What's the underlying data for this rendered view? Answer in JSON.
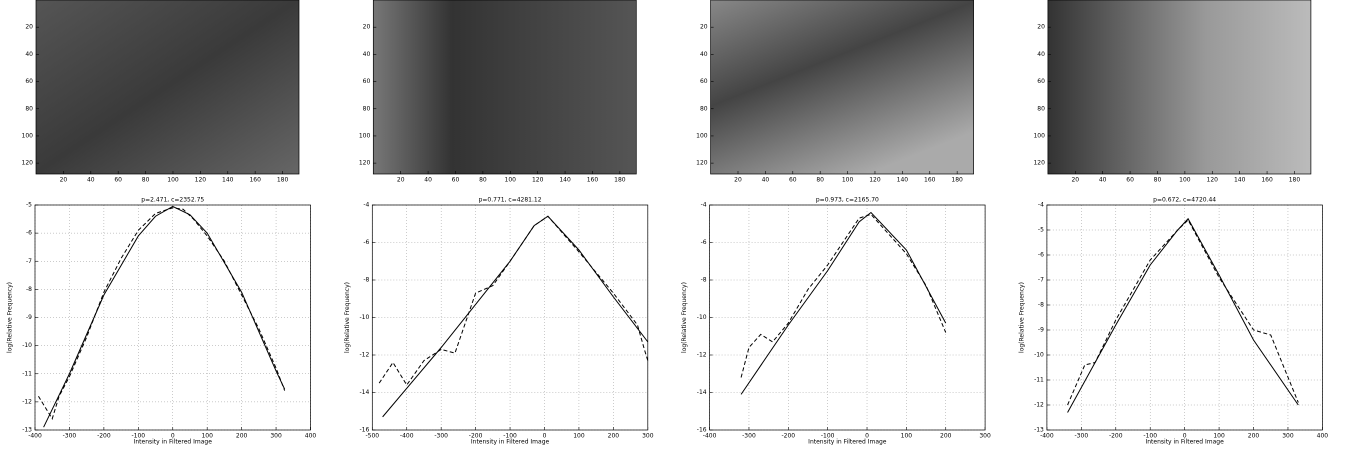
{
  "chart_data": [
    {
      "type": "image",
      "xlim": [
        0,
        192
      ],
      "ylim": [
        128,
        0
      ],
      "xticks": [
        20,
        40,
        60,
        80,
        100,
        120,
        140,
        160,
        180
      ],
      "yticks": [
        20,
        40,
        60,
        80,
        100,
        120
      ]
    },
    {
      "type": "image",
      "xlim": [
        0,
        192
      ],
      "ylim": [
        128,
        0
      ],
      "xticks": [
        20,
        40,
        60,
        80,
        100,
        120,
        140,
        160,
        180
      ],
      "yticks": [
        20,
        40,
        60,
        80,
        100,
        120
      ]
    },
    {
      "type": "image",
      "xlim": [
        0,
        192
      ],
      "ylim": [
        128,
        0
      ],
      "xticks": [
        20,
        40,
        60,
        80,
        100,
        120,
        140,
        160,
        180
      ],
      "yticks": [
        20,
        40,
        60,
        80,
        100,
        120
      ]
    },
    {
      "type": "image",
      "xlim": [
        0,
        192
      ],
      "ylim": [
        128,
        0
      ],
      "xticks": [
        20,
        40,
        60,
        80,
        100,
        120,
        140,
        160,
        180
      ],
      "yticks": [
        20,
        40,
        60,
        80,
        100,
        120
      ]
    },
    {
      "type": "line",
      "title": "p=2.471, c=2352.75",
      "x_label": "Intensity in Filtered Image",
      "y_label": "log(Relative Frequency)",
      "grid": true,
      "xlim": [
        -400,
        400
      ],
      "xticks": [
        -400,
        -300,
        -200,
        -100,
        0,
        100,
        200,
        300,
        400
      ],
      "ylim": [
        -13,
        -5
      ],
      "yticks": [
        -13,
        -12,
        -11,
        -10,
        -9,
        -8,
        -7,
        -6,
        -5
      ],
      "series": [
        {
          "color": "#000000",
          "dashed": false,
          "x": [
            -375,
            -300,
            -200,
            -100,
            -50,
            0,
            50,
            100,
            200,
            300,
            325
          ],
          "values": [
            -12.9,
            -11.0,
            -8.2,
            -6.1,
            -5.4,
            -5.05,
            -5.35,
            -6.0,
            -8.1,
            -10.9,
            -11.55
          ]
        },
        {
          "color": "#000000",
          "dashed": true,
          "x": [
            -390,
            -370,
            -350,
            -330,
            -300,
            -250,
            -200,
            -150,
            -100,
            -50,
            0,
            30,
            60,
            100,
            150,
            200,
            250,
            300,
            325
          ],
          "values": [
            -11.8,
            -12.2,
            -12.6,
            -11.8,
            -11.1,
            -9.7,
            -8.1,
            -6.9,
            -5.9,
            -5.3,
            -5.1,
            -5.15,
            -5.5,
            -6.1,
            -7.0,
            -8.2,
            -9.4,
            -10.8,
            -11.6
          ]
        }
      ]
    },
    {
      "type": "line",
      "title": "p=0.771, c=4281.12",
      "x_label": "Intensity in Filtered Image",
      "y_label": "log(Relative Frequency)",
      "grid": true,
      "xlim": [
        -500,
        300
      ],
      "xticks": [
        -500,
        -400,
        -300,
        -200,
        -100,
        0,
        100,
        200,
        300
      ],
      "ylim": [
        -16,
        -4
      ],
      "yticks": [
        -16,
        -14,
        -12,
        -10,
        -8,
        -6,
        -4
      ],
      "series": [
        {
          "color": "#000000",
          "dashed": false,
          "x": [
            -470,
            -300,
            -100,
            -30,
            10,
            100,
            200,
            300
          ],
          "values": [
            -15.3,
            -11.6,
            -7.0,
            -5.1,
            -4.6,
            -6.4,
            -8.9,
            -11.3
          ]
        },
        {
          "color": "#000000",
          "dashed": true,
          "x": [
            -480,
            -440,
            -400,
            -350,
            -300,
            -260,
            -200,
            -150,
            -100,
            -30,
            10,
            100,
            200,
            270,
            290,
            300
          ],
          "values": [
            -13.5,
            -12.4,
            -13.6,
            -12.3,
            -11.7,
            -11.9,
            -8.7,
            -8.3,
            -7.0,
            -5.1,
            -4.6,
            -6.5,
            -8.7,
            -10.4,
            -11.7,
            -12.3
          ]
        }
      ]
    },
    {
      "type": "line",
      "title": "p=0.973, c=2165.70",
      "x_label": "Intensity in Filtered Image",
      "y_label": "log(Relative Frequency)",
      "grid": true,
      "xlim": [
        -400,
        300
      ],
      "xticks": [
        -400,
        -300,
        -200,
        -100,
        0,
        100,
        200,
        300
      ],
      "ylim": [
        -16,
        -4
      ],
      "yticks": [
        -16,
        -14,
        -12,
        -10,
        -8,
        -6,
        -4
      ],
      "series": [
        {
          "color": "#000000",
          "dashed": false,
          "x": [
            -320,
            -200,
            -100,
            -20,
            10,
            100,
            200
          ],
          "values": [
            -14.1,
            -10.4,
            -7.5,
            -4.9,
            -4.4,
            -6.4,
            -10.3
          ]
        },
        {
          "color": "#000000",
          "dashed": true,
          "x": [
            -320,
            -300,
            -270,
            -240,
            -200,
            -150,
            -100,
            -20,
            10,
            100,
            150,
            200
          ],
          "values": [
            -13.2,
            -11.6,
            -10.9,
            -11.3,
            -10.3,
            -8.5,
            -7.2,
            -4.7,
            -4.5,
            -6.6,
            -8.3,
            -10.8
          ]
        }
      ]
    },
    {
      "type": "line",
      "title": "p=0.672, c=4720.44",
      "x_label": "Intensity in Filtered Image",
      "y_label": "log(Relative Frequency)",
      "grid": true,
      "xlim": [
        -400,
        400
      ],
      "xticks": [
        -400,
        -300,
        -200,
        -100,
        0,
        100,
        200,
        300,
        400
      ],
      "ylim": [
        -13,
        -4
      ],
      "yticks": [
        -13,
        -12,
        -11,
        -10,
        -9,
        -8,
        -7,
        -6,
        -5,
        -4
      ],
      "series": [
        {
          "color": "#000000",
          "dashed": false,
          "x": [
            -340,
            -200,
            -100,
            -20,
            10,
            100,
            200,
            330
          ],
          "values": [
            -12.3,
            -8.8,
            -6.4,
            -5.0,
            -4.55,
            -6.8,
            -9.4,
            -12.0
          ]
        },
        {
          "color": "#000000",
          "dashed": true,
          "x": [
            -340,
            -290,
            -260,
            -200,
            -100,
            -20,
            10,
            100,
            200,
            250,
            330
          ],
          "values": [
            -12.0,
            -10.4,
            -10.3,
            -8.6,
            -6.2,
            -5.0,
            -4.6,
            -6.9,
            -9.0,
            -9.2,
            -11.9
          ]
        }
      ]
    }
  ]
}
